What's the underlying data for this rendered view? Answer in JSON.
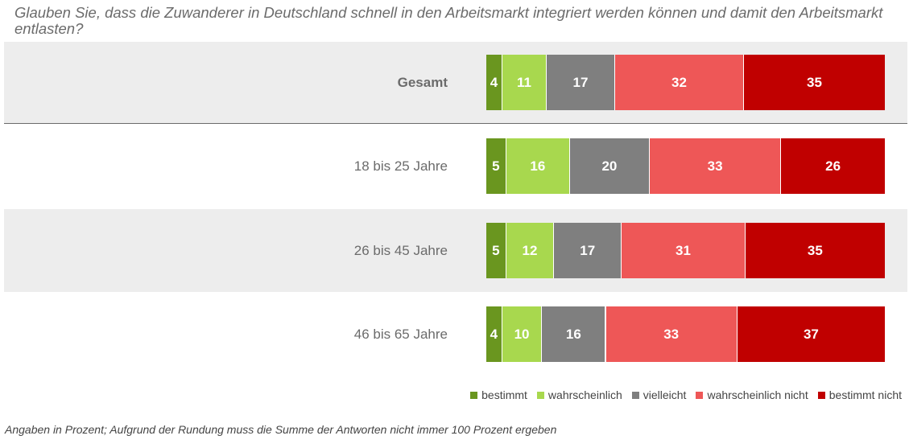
{
  "chart_data": {
    "type": "bar",
    "orientation": "horizontal",
    "stacked": true,
    "title": "Glauben Sie, dass die Zuwanderer in Deutschland schnell in den Arbeitsmarkt integriert werden können und damit den Arbeitsmarkt entlasten?",
    "categories": [
      "Gesamt",
      "18 bis 25 Jahre",
      "26 bis 45 Jahre",
      "46 bis 65 Jahre"
    ],
    "series": [
      {
        "name": "bestimmt",
        "color": "#6a961f",
        "values": [
          4,
          5,
          5,
          4
        ]
      },
      {
        "name": "wahrscheinlich",
        "color": "#a8d84e",
        "values": [
          11,
          16,
          12,
          10
        ]
      },
      {
        "name": "vielleicht",
        "color": "#7f7f7f",
        "values": [
          17,
          20,
          17,
          16
        ]
      },
      {
        "name": "wahrscheinlich nicht",
        "color": "#ee5757",
        "values": [
          32,
          33,
          31,
          33
        ]
      },
      {
        "name": "bestimmt nicht",
        "color": "#c00000",
        "values": [
          35,
          26,
          35,
          37
        ]
      }
    ],
    "legend_position": "bottom-right",
    "grid": false,
    "footnote": "Angaben in Prozent; Aufgrund der Rundung muss die Summe der Antworten nicht immer 100 Prozent ergeben"
  }
}
